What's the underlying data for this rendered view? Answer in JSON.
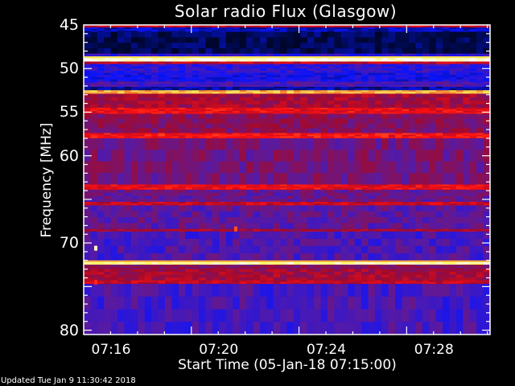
{
  "chart_data": {
    "type": "heatmap",
    "title": "Solar radio Flux (Glasgow)",
    "xlabel": "Start Time (05-Jan-18 07:15:00)",
    "ylabel": "Frequency [MHz]",
    "x_ticks": [
      "07:16",
      "07:20",
      "07:24",
      "07:28"
    ],
    "y_ticks": [
      "45",
      "50",
      "55",
      "60",
      "70",
      "80"
    ],
    "x_range_minutes_after_start": [
      0,
      15.1
    ],
    "ylim": [
      45,
      80.5
    ],
    "y_inverted": true,
    "colormap": [
      "#000000",
      "#000a50",
      "#0a14ff",
      "#5a1aa0",
      "#a00a30",
      "#ff1010",
      "#ff8030",
      "#ffff60",
      "#ffffff"
    ],
    "bands": [
      {
        "from": 45.0,
        "to": 45.3,
        "level": 0.55
      },
      {
        "from": 45.3,
        "to": 45.8,
        "level": 0.2
      },
      {
        "from": 45.8,
        "to": 48.3,
        "level": 0.12
      },
      {
        "from": 48.3,
        "to": 48.6,
        "level": 0.3
      },
      {
        "from": 48.6,
        "to": 48.8,
        "level": 0.85
      },
      {
        "from": 48.8,
        "to": 49.2,
        "level": 0.97
      },
      {
        "from": 49.2,
        "to": 49.5,
        "level": 0.55
      },
      {
        "from": 49.5,
        "to": 50.5,
        "level": 0.3
      },
      {
        "from": 50.5,
        "to": 51.5,
        "level": 0.26
      },
      {
        "from": 51.5,
        "to": 52.1,
        "level": 0.35
      },
      {
        "from": 52.1,
        "to": 52.5,
        "level": 0.18
      },
      {
        "from": 52.5,
        "to": 52.9,
        "level": 0.8
      },
      {
        "from": 52.9,
        "to": 54.5,
        "level": 0.5
      },
      {
        "from": 54.5,
        "to": 55.2,
        "level": 0.6
      },
      {
        "from": 55.2,
        "to": 57.4,
        "level": 0.45
      },
      {
        "from": 57.4,
        "to": 58.0,
        "level": 0.62
      },
      {
        "from": 58.0,
        "to": 63.3,
        "level": 0.42
      },
      {
        "from": 63.3,
        "to": 63.9,
        "level": 0.6
      },
      {
        "from": 63.9,
        "to": 65.3,
        "level": 0.4
      },
      {
        "from": 65.3,
        "to": 65.7,
        "level": 0.55
      },
      {
        "from": 65.7,
        "to": 68.4,
        "level": 0.38
      },
      {
        "from": 68.4,
        "to": 68.7,
        "level": 0.5
      },
      {
        "from": 68.7,
        "to": 72.0,
        "level": 0.35
      },
      {
        "from": 72.0,
        "to": 72.2,
        "level": 0.8
      },
      {
        "from": 72.2,
        "to": 72.5,
        "level": 0.93
      },
      {
        "from": 72.5,
        "to": 73.0,
        "level": 0.45
      },
      {
        "from": 73.0,
        "to": 74.3,
        "level": 0.5
      },
      {
        "from": 74.3,
        "to": 74.7,
        "level": 0.55
      },
      {
        "from": 74.7,
        "to": 80.5,
        "level": 0.34
      }
    ],
    "hotspots": [
      {
        "minute": 0.45,
        "freq": 70.6,
        "level": 0.95
      },
      {
        "minute": 0.45,
        "freq": 74.5,
        "level": 0.65
      },
      {
        "minute": 5.65,
        "freq": 68.4,
        "level": 0.7
      }
    ]
  },
  "footer": {
    "updated": "Updated Tue Jan  9 11:30:42 2018"
  }
}
